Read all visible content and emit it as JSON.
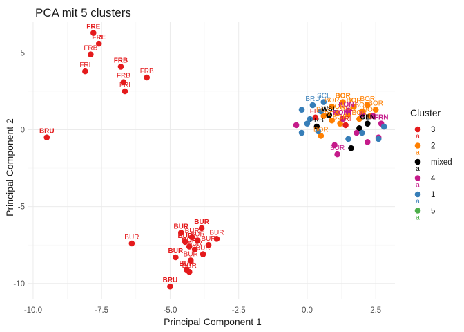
{
  "chart_data": {
    "type": "scatter",
    "title": "PCA mit 5 clusters",
    "xlabel": "Principal Component 1",
    "ylabel": "Principal Component 2",
    "xlim": [
      -10.2,
      3.2
    ],
    "ylim": [
      -11.0,
      7.0
    ],
    "x_ticks": [
      -10.0,
      -7.5,
      -5.0,
      -2.5,
      0.0,
      2.5
    ],
    "x_tick_labels": [
      "-10.0",
      "-7.5",
      "-5.0",
      "-2.5",
      "0.0",
      "2.5"
    ],
    "y_ticks": [
      -10,
      -5,
      0,
      5
    ],
    "y_tick_labels": [
      "-10",
      "-5",
      "0",
      "5"
    ],
    "grid": true,
    "legend_placement": "right",
    "legend": {
      "title": "Cluster",
      "entries": [
        {
          "label": "3",
          "color": "#e41a1c"
        },
        {
          "label": "2",
          "color": "#ff7f00"
        },
        {
          "label": "mixed",
          "color": "#000000"
        },
        {
          "label": "4",
          "color": "#c51b8a"
        },
        {
          "label": "1",
          "color": "#377eb8"
        },
        {
          "label": "5",
          "color": "#4daf4a"
        }
      ],
      "key_text": "a"
    },
    "series": [
      {
        "name": "3",
        "color": "#e41a1c",
        "points": [
          {
            "x": -9.5,
            "y": -0.5,
            "label": "BRU",
            "bold": true
          },
          {
            "x": -7.8,
            "y": 6.3,
            "label": "FRE",
            "bold": true
          },
          {
            "x": -7.6,
            "y": 5.6,
            "label": "FRE",
            "bold": true
          },
          {
            "x": -7.9,
            "y": 4.9,
            "label": "FRB",
            "bold": false
          },
          {
            "x": -8.1,
            "y": 3.8,
            "label": "FRI",
            "bold": false
          },
          {
            "x": -6.8,
            "y": 4.1,
            "label": "FRB",
            "bold": true
          },
          {
            "x": -6.7,
            "y": 3.1,
            "label": "FRB",
            "bold": false
          },
          {
            "x": -6.65,
            "y": 2.5,
            "label": "FRI",
            "bold": false
          },
          {
            "x": -5.85,
            "y": 3.4,
            "label": "FRB",
            "bold": false
          },
          {
            "x": -6.4,
            "y": -7.4,
            "label": "BUR",
            "bold": false
          },
          {
            "x": -4.6,
            "y": -6.7,
            "label": "BUR",
            "bold": true
          },
          {
            "x": -3.85,
            "y": -6.4,
            "label": "BUR",
            "bold": true
          },
          {
            "x": -4.45,
            "y": -7.3,
            "label": "BUR",
            "bold": true
          },
          {
            "x": -4.3,
            "y": -7.6,
            "label": "BUR",
            "bold": true
          },
          {
            "x": -4.1,
            "y": -7.8,
            "label": "BUR",
            "bold": false
          },
          {
            "x": -3.8,
            "y": -8.1,
            "label": "BUR",
            "bold": false
          },
          {
            "x": -3.6,
            "y": -7.5,
            "label": "BUR",
            "bold": false
          },
          {
            "x": -3.3,
            "y": -7.1,
            "label": "BUR",
            "bold": false
          },
          {
            "x": -4.2,
            "y": -7.0,
            "label": "BUR",
            "bold": false
          },
          {
            "x": -4.0,
            "y": -7.2,
            "label": "BUR",
            "bold": false
          },
          {
            "x": -4.25,
            "y": -8.5,
            "label": "BUR",
            "bold": false
          },
          {
            "x": -4.8,
            "y": -8.3,
            "label": "BUR",
            "bold": true
          },
          {
            "x": -4.4,
            "y": -9.1,
            "label": "BUR",
            "bold": true
          },
          {
            "x": -4.3,
            "y": -9.25,
            "label": "BUR",
            "bold": false
          },
          {
            "x": -5.0,
            "y": -10.2,
            "label": "BRU",
            "bold": true
          },
          {
            "x": 0.3,
            "y": 0.8,
            "label": "FRI",
            "bold": false
          },
          {
            "x": 1.4,
            "y": 0.3,
            "label": "FRI",
            "bold": false
          }
        ]
      },
      {
        "name": "2",
        "color": "#ff7f00",
        "points": [
          {
            "x": 0.9,
            "y": 1.5,
            "label": "BOR",
            "bold": false
          },
          {
            "x": 1.3,
            "y": 1.8,
            "label": "BOR",
            "bold": true
          },
          {
            "x": 1.7,
            "y": 1.5,
            "label": "BOR",
            "bold": true
          },
          {
            "x": 2.0,
            "y": 1.2,
            "label": "BOR",
            "bold": false
          },
          {
            "x": 2.3,
            "y": 0.9,
            "label": "BOR",
            "bold": false
          },
          {
            "x": 1.1,
            "y": 1.1,
            "label": "BOR",
            "bold": false
          },
          {
            "x": 1.5,
            "y": 1.0,
            "label": "BOR",
            "bold": false
          },
          {
            "x": 1.9,
            "y": 0.7,
            "label": "BOR",
            "bold": false
          },
          {
            "x": 0.6,
            "y": 0.9,
            "label": "BOR",
            "bold": false
          },
          {
            "x": 2.5,
            "y": 1.3,
            "label": "BOR",
            "bold": false
          },
          {
            "x": 1.2,
            "y": 0.4,
            "label": "BOR",
            "bold": false
          },
          {
            "x": 0.5,
            "y": -0.4,
            "label": "BOR",
            "bold": false
          },
          {
            "x": 2.2,
            "y": 1.6,
            "label": "BOR",
            "bold": false
          },
          {
            "x": 0.9,
            "y": 0.6,
            "label": "BOR",
            "bold": false
          }
        ]
      },
      {
        "name": "mixed",
        "color": "#000000",
        "points": [
          {
            "x": 0.8,
            "y": 0.95,
            "label": "WSL",
            "bold": true
          },
          {
            "x": 2.2,
            "y": 0.4,
            "label": "GEN",
            "bold": true
          },
          {
            "x": 0.35,
            "y": 0.2,
            "label": "FRB",
            "bold": false
          },
          {
            "x": 1.6,
            "y": -1.2,
            "label": "",
            "bold": false
          },
          {
            "x": 1.9,
            "y": 0.1,
            "label": "",
            "bold": false
          }
        ]
      },
      {
        "name": "4",
        "color": "#c51b8a",
        "points": [
          {
            "x": 1.5,
            "y": 1.25,
            "label": "KONT",
            "bold": true
          },
          {
            "x": 1.3,
            "y": 0.7,
            "label": "KONT",
            "bold": true
          },
          {
            "x": 2.7,
            "y": 0.4,
            "label": "FRN",
            "bold": true
          },
          {
            "x": 1.1,
            "y": -1.6,
            "label": "BUR",
            "bold": false
          },
          {
            "x": 2.2,
            "y": -0.8,
            "label": "",
            "bold": false
          },
          {
            "x": 2.6,
            "y": -0.5,
            "label": "",
            "bold": false
          },
          {
            "x": 1.8,
            "y": -0.2,
            "label": "",
            "bold": false
          },
          {
            "x": 2.4,
            "y": 0.9,
            "label": "",
            "bold": false
          },
          {
            "x": 1.0,
            "y": -1.0,
            "label": "",
            "bold": false
          },
          {
            "x": -0.4,
            "y": 0.3,
            "label": "",
            "bold": false
          },
          {
            "x": 2.0,
            "y": 1.0,
            "label": "",
            "bold": false
          }
        ]
      },
      {
        "name": "1",
        "color": "#377eb8",
        "points": [
          {
            "x": 0.2,
            "y": 1.6,
            "label": "BRU",
            "bold": false
          },
          {
            "x": 0.6,
            "y": 1.8,
            "label": "SCL",
            "bold": false
          },
          {
            "x": -0.2,
            "y": 1.3,
            "label": "",
            "bold": false
          },
          {
            "x": 0.1,
            "y": 0.7,
            "label": "",
            "bold": false
          },
          {
            "x": -0.2,
            "y": -0.2,
            "label": "",
            "bold": false
          },
          {
            "x": 0.5,
            "y": 1.2,
            "label": "",
            "bold": false
          },
          {
            "x": 0.0,
            "y": 0.4,
            "label": "",
            "bold": false
          },
          {
            "x": 2.6,
            "y": -0.6,
            "label": "",
            "bold": false
          },
          {
            "x": 2.0,
            "y": -0.2,
            "label": "",
            "bold": false
          },
          {
            "x": 1.5,
            "y": -0.6,
            "label": "",
            "bold": false
          },
          {
            "x": 2.8,
            "y": 0.2,
            "label": "",
            "bold": false
          },
          {
            "x": 0.4,
            "y": -0.1,
            "label": "",
            "bold": false
          }
        ]
      }
    ]
  }
}
